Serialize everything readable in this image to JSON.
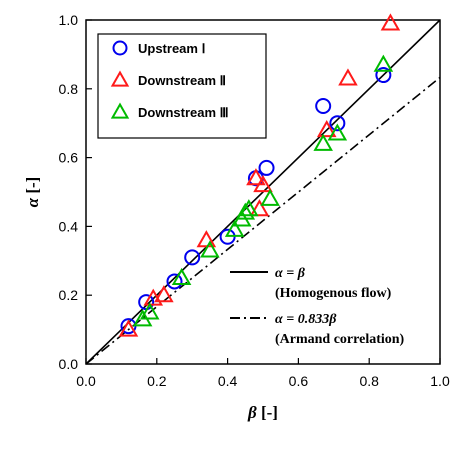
{
  "chart_data": {
    "type": "scatter",
    "xlabel": {
      "symbol": "β",
      "unit": " [-]"
    },
    "ylabel": {
      "symbol": "α",
      "unit": " [-]"
    },
    "xlim": [
      0.0,
      1.0
    ],
    "ylim": [
      0.0,
      1.0
    ],
    "x_ticks": [
      "0.0",
      "0.2",
      "0.4",
      "0.6",
      "0.8",
      "1.0"
    ],
    "y_ticks": [
      "0.0",
      "0.2",
      "0.4",
      "0.6",
      "0.8",
      "1.0"
    ],
    "grid": false,
    "legend_position": "top-left",
    "series": [
      {
        "name": "Upstream  Ⅰ",
        "marker": "circle",
        "color": "#0000ee",
        "points": [
          [
            0.12,
            0.11
          ],
          [
            0.17,
            0.18
          ],
          [
            0.25,
            0.24
          ],
          [
            0.3,
            0.31
          ],
          [
            0.4,
            0.37
          ],
          [
            0.48,
            0.54
          ],
          [
            0.51,
            0.57
          ],
          [
            0.67,
            0.75
          ],
          [
            0.71,
            0.7
          ],
          [
            0.84,
            0.84
          ]
        ]
      },
      {
        "name": "Downstream Ⅱ",
        "marker": "triangle",
        "color": "#ff1a1a",
        "points": [
          [
            0.12,
            0.1
          ],
          [
            0.19,
            0.19
          ],
          [
            0.22,
            0.2
          ],
          [
            0.34,
            0.36
          ],
          [
            0.48,
            0.54
          ],
          [
            0.49,
            0.45
          ],
          [
            0.5,
            0.52
          ],
          [
            0.68,
            0.68
          ],
          [
            0.74,
            0.83
          ],
          [
            0.86,
            0.99
          ]
        ]
      },
      {
        "name": "Downstream Ⅲ",
        "marker": "triangle",
        "color": "#00bb00",
        "points": [
          [
            0.16,
            0.13
          ],
          [
            0.18,
            0.15
          ],
          [
            0.27,
            0.25
          ],
          [
            0.35,
            0.33
          ],
          [
            0.42,
            0.39
          ],
          [
            0.44,
            0.42
          ],
          [
            0.45,
            0.44
          ],
          [
            0.46,
            0.45
          ],
          [
            0.52,
            0.48
          ],
          [
            0.67,
            0.64
          ],
          [
            0.71,
            0.67
          ],
          [
            0.84,
            0.87
          ]
        ]
      }
    ],
    "lines": [
      {
        "name": "α = β",
        "style": "solid",
        "slope": 1.0,
        "description": "(Homogenous flow)"
      },
      {
        "name": "α = 0.833β",
        "style": "dashdot",
        "slope": 0.833,
        "description": "(Armand correlation)"
      }
    ]
  }
}
